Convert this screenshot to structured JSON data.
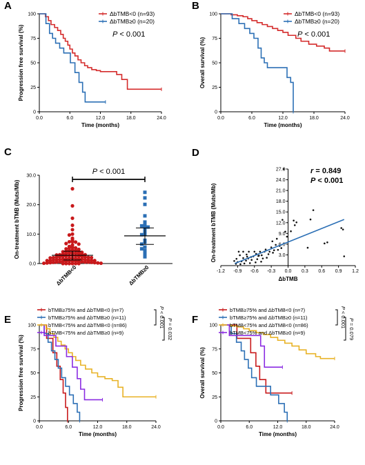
{
  "chart_data": [
    {
      "panel": "A",
      "type": "line",
      "step": true,
      "xlabel": "Time (months)",
      "ylabel": "Progression free survival (%)",
      "xlim": [
        0,
        24
      ],
      "ylim": [
        0,
        100
      ],
      "xticks": [
        "0.0",
        "6.0",
        "12.0",
        "18.0",
        "24.0"
      ],
      "yticks": [
        "0",
        "25",
        "50",
        "75",
        "100"
      ],
      "legend_position": "top-right",
      "annotation": "P < 0.001",
      "series": [
        {
          "name": "ΔbTMB<0 (n=93)",
          "color": "#d42a2a",
          "x": [
            0,
            1.2,
            1.8,
            2.3,
            3.0,
            3.6,
            4.2,
            4.7,
            5.1,
            5.6,
            6.0,
            6.5,
            7.0,
            7.6,
            8.2,
            8.9,
            9.5,
            10.3,
            11.2,
            12.0,
            13.4,
            15.2,
            16.2,
            17.3,
            24
          ],
          "y": [
            100,
            97,
            93,
            89,
            86,
            83,
            79,
            75,
            72,
            68,
            64,
            60,
            57,
            53,
            50,
            47,
            45,
            43,
            42,
            41,
            41,
            38,
            33,
            23,
            23
          ]
        },
        {
          "name": "ΔbTMB≥0 (n=20)",
          "color": "#2b6fb5",
          "x": [
            0,
            1.3,
            2.0,
            2.6,
            3.2,
            4.0,
            4.8,
            6.1,
            7.0,
            7.8,
            8.5,
            9.0,
            10.2,
            13.0
          ],
          "y": [
            100,
            90,
            80,
            75,
            70,
            65,
            60,
            50,
            40,
            30,
            20,
            10,
            10,
            10
          ]
        }
      ]
    },
    {
      "panel": "B",
      "type": "line",
      "step": true,
      "xlabel": "Time (months)",
      "ylabel": "Overall survival (%)",
      "xlim": [
        0,
        24
      ],
      "ylim": [
        0,
        100
      ],
      "xticks": [
        "0.0",
        "6.0",
        "12.0",
        "18.0",
        "24.0"
      ],
      "yticks": [
        "0",
        "25",
        "50",
        "75",
        "100"
      ],
      "legend_position": "top-right",
      "annotation": "P < 0.001",
      "series": [
        {
          "name": "ΔbTMB<0 (n=93)",
          "color": "#d42a2a",
          "x": [
            0,
            2.0,
            3.2,
            4.3,
            5.2,
            6.0,
            7.0,
            8.0,
            9.0,
            10.0,
            11.0,
            12.0,
            13.0,
            14.5,
            15.5,
            17.0,
            18.5,
            20.0,
            21.0,
            24
          ],
          "y": [
            100,
            99,
            98,
            97,
            95,
            93,
            91,
            89,
            87,
            85,
            83,
            81,
            78,
            75,
            72,
            69,
            67,
            65,
            62,
            62
          ]
        },
        {
          "name": "ΔbTMB≥0 (n=20)",
          "color": "#2b6fb5",
          "x": [
            0,
            2.2,
            3.5,
            4.6,
            5.6,
            6.4,
            7.2,
            7.8,
            8.4,
            9.0,
            12.0,
            12.8,
            13.5,
            14.0
          ],
          "y": [
            100,
            95,
            90,
            85,
            80,
            75,
            65,
            55,
            50,
            45,
            45,
            35,
            30,
            0
          ]
        }
      ]
    },
    {
      "panel": "C",
      "type": "scatter",
      "ylabel": "On-treatment bTMB (Muts/Mb)",
      "ylim": [
        0,
        30
      ],
      "yticks": [
        "0.0",
        "10.0",
        "20.0",
        "30.0"
      ],
      "categories": [
        "ΔbTMB<0",
        "ΔbTMB≥0"
      ],
      "annotation": "P < 0.001",
      "series": [
        {
          "name": "ΔbTMB<0",
          "color": "#c8191b",
          "mean": 2.8,
          "sd_low": 1.2,
          "sd_high": 4.2,
          "values": [
            25.4,
            19.6,
            15.4,
            13.0,
            11.5,
            10.0,
            9.7,
            8.6,
            8.0,
            7.4,
            7.4,
            7.3,
            6.8,
            6.6,
            6.3,
            5.8,
            5.5,
            5.3,
            5.3,
            5.0,
            4.8,
            4.6,
            4.4,
            4.4,
            4.2,
            4.0,
            4.0,
            3.8,
            3.6,
            3.6,
            3.5,
            3.4,
            3.3,
            3.2,
            3.1,
            3.0,
            3.0,
            2.9,
            2.8,
            2.7,
            2.6,
            2.6,
            2.5,
            2.4,
            2.4,
            2.3,
            2.2,
            2.2,
            2.1,
            2.0,
            2.0,
            1.9,
            1.8,
            1.8,
            1.7,
            1.6,
            1.6,
            1.5,
            1.5,
            1.4,
            1.3,
            1.3,
            1.2,
            1.2,
            1.1,
            1.0,
            1.0,
            1.0,
            0.9,
            0.9,
            0.8,
            0.8,
            0.7,
            0.7,
            0.6,
            0.6,
            0.5,
            0.5,
            0.5,
            0.4,
            0.4,
            0.3,
            0.3,
            0.2,
            0.2,
            0.1,
            0.1,
            0.0,
            0.0,
            0.0,
            0.0,
            0.0,
            0.0
          ]
        },
        {
          "name": "ΔbTMB≥0",
          "color": "#2b6fb5",
          "mean": 9.4,
          "sd_low": 6.5,
          "sd_high": 12.1,
          "values": [
            24.2,
            22.3,
            20.1,
            16.2,
            14.1,
            13.0,
            12.8,
            12.4,
            11.9,
            11.1,
            10.0,
            9.8,
            7.9,
            7.3,
            6.6,
            5.6,
            5.0,
            4.4,
            3.3,
            2.3
          ]
        }
      ]
    },
    {
      "panel": "D",
      "type": "scatter",
      "xlabel": "ΔbTMB",
      "ylabel": "On-treatment bTMB (Muts/Mb)",
      "xlim": [
        -1.2,
        1.2
      ],
      "ylim": [
        0,
        27
      ],
      "xticks": [
        "-1.2",
        "-0.9",
        "-0.6",
        "-0.3",
        "0.0",
        "0.3",
        "0.6",
        "0.9",
        "1.2"
      ],
      "yticks": [
        "3.0",
        "6.0",
        "9.0",
        "12.0",
        "15.0",
        "18.0",
        "21.0",
        "24.0",
        "27.0"
      ],
      "annotation_r": "r = 0.849",
      "annotation_p": "P < 0.001",
      "fit_line": {
        "color": "#2b6fb5",
        "x": [
          -0.95,
          1.0
        ],
        "y": [
          0.6,
          12.9
        ]
      },
      "points": {
        "x": [
          -0.93,
          -0.9,
          -0.88,
          -0.85,
          -0.83,
          -0.8,
          -0.78,
          -0.75,
          -0.73,
          -0.7,
          -0.68,
          -0.65,
          -0.62,
          -0.6,
          -0.58,
          -0.55,
          -0.52,
          -0.5,
          -0.48,
          -0.45,
          -0.42,
          -0.4,
          -0.38,
          -0.35,
          -0.3,
          -0.28,
          -0.25,
          -0.2,
          -0.18,
          -0.15,
          -0.1,
          -0.05,
          0.05,
          0.1,
          0.15,
          0.35,
          0.45,
          0.7,
          0.95,
          1.0,
          -0.92,
          -0.86,
          -0.8,
          -0.74,
          -0.66,
          -0.57,
          -0.47,
          -0.33,
          -0.22,
          -0.12,
          -0.02,
          0.12,
          0.4,
          0.65,
          0.98,
          -0.96,
          -0.71,
          -0.53,
          -0.27,
          -0.08
        ],
        "y": [
          0.5,
          1.0,
          3.9,
          0.4,
          1.2,
          3.9,
          0.6,
          1.4,
          2.5,
          3.9,
          0.7,
          1.6,
          2.6,
          3.9,
          0.9,
          1.8,
          2.8,
          3.9,
          1.1,
          2.0,
          3.9,
          4.5,
          2.2,
          3.2,
          5.1,
          6.8,
          4.3,
          7.5,
          4.4,
          5.5,
          12.8,
          9.5,
          9.6,
          12.6,
          12.1,
          5.0,
          15.5,
          6.5,
          10.5,
          2.6,
          1.9,
          2.9,
          2.1,
          3.1,
          2.4,
          3.3,
          2.9,
          3.9,
          5.8,
          4.9,
          8.1,
          11.3,
          12.9,
          6.2,
          10.1,
          1.3,
          2.0,
          2.7,
          3.6,
          27.0
        ]
      }
    },
    {
      "panel": "E",
      "type": "line",
      "step": true,
      "xlabel": "Time (months)",
      "ylabel": "Progression free survival (%)",
      "xlim": [
        0,
        24
      ],
      "ylim": [
        0,
        100
      ],
      "xticks": [
        "0.0",
        "6.0",
        "12.0",
        "18.0",
        "24.0"
      ],
      "yticks": [
        "0",
        "25",
        "50",
        "75",
        "100"
      ],
      "legend_position": "top-left",
      "bracket_p1": "P < 0.001",
      "bracket_p2": "P = 0.032",
      "series": [
        {
          "name": "bTMB≥75% and ΔbTMB<0 (n=7)",
          "color": "#c8191b",
          "x": [
            0,
            1.5,
            2.8,
            3.6,
            4.3,
            4.9,
            5.4,
            5.8
          ],
          "y": [
            100,
            86,
            71,
            57,
            43,
            29,
            14,
            0
          ]
        },
        {
          "name": "bTMB≥75% and ΔbTMB≥0 (n=11)",
          "color": "#2b6fb5",
          "x": [
            0,
            1.0,
            1.8,
            2.5,
            3.2,
            3.9,
            4.6,
            5.4,
            6.2,
            7.0,
            7.8,
            8.3
          ],
          "y": [
            100,
            91,
            82,
            73,
            64,
            55,
            45,
            36,
            27,
            18,
            9,
            0
          ]
        },
        {
          "name": "bTMB<75% and ΔbTMB<0 (n=86)",
          "color": "#e8b225",
          "x": [
            0,
            1.4,
            2.2,
            3.0,
            3.8,
            4.5,
            5.3,
            6.0,
            6.8,
            7.5,
            8.5,
            9.5,
            10.8,
            12.0,
            13.5,
            15.0,
            16.2,
            17.2,
            24
          ],
          "y": [
            100,
            96,
            91,
            87,
            83,
            79,
            75,
            71,
            67,
            63,
            58,
            54,
            50,
            46,
            44,
            42,
            35,
            25,
            25
          ]
        },
        {
          "name": "bTMB<75% and ΔbTMB≥0 (n=9)",
          "color": "#8a2be2",
          "x": [
            0,
            1.0,
            2.2,
            3.4,
            4.6,
            5.6,
            6.8,
            7.8,
            8.5,
            9.3,
            13.0
          ],
          "y": [
            100,
            89,
            89,
            78,
            78,
            67,
            56,
            44,
            33,
            22,
            22
          ]
        }
      ]
    },
    {
      "panel": "F",
      "type": "line",
      "step": true,
      "xlabel": "Time (months)",
      "ylabel": "Overall survival (%)",
      "xlim": [
        0,
        24
      ],
      "ylim": [
        0,
        100
      ],
      "xticks": [
        "0.0",
        "6.0",
        "12.0",
        "18.0",
        "24.0"
      ],
      "yticks": [
        "0",
        "25",
        "50",
        "75",
        "100"
      ],
      "legend_position": "top-left",
      "bracket_p1": "P < 0.001",
      "bracket_p2": "P = 0.079",
      "series": [
        {
          "name": "bTMB≥75% and ΔbTMB<0 (n=7)",
          "color": "#c8191b",
          "x": [
            0,
            3.4,
            5.2,
            6.3,
            7.4,
            8.2,
            9.5,
            12.6,
            15.0
          ],
          "y": [
            100,
            86,
            86,
            71,
            57,
            43,
            29,
            29,
            29
          ]
        },
        {
          "name": "bTMB≥75% and ΔbTMB≥0 (n=11)",
          "color": "#2b6fb5",
          "x": [
            0,
            2.2,
            3.3,
            4.3,
            5.0,
            5.8,
            6.5,
            7.5,
            9.5,
            10.5,
            12.2,
            13.4,
            14.0
          ],
          "y": [
            100,
            91,
            82,
            73,
            64,
            55,
            45,
            36,
            36,
            27,
            18,
            9,
            0
          ]
        },
        {
          "name": "bTMB<75% and ΔbTMB<0 (n=86)",
          "color": "#e8b225",
          "x": [
            0,
            2.2,
            3.5,
            4.8,
            6.0,
            7.5,
            9.0,
            10.5,
            12.0,
            13.5,
            15.0,
            16.5,
            18.0,
            20.0,
            21.0,
            24
          ],
          "y": [
            100,
            99,
            98,
            96,
            94,
            92,
            90,
            87,
            84,
            81,
            78,
            74,
            70,
            67,
            65,
            65
          ]
        },
        {
          "name": "bTMB<75% and ΔbTMB≥0 (n=9)",
          "color": "#8a2be2",
          "x": [
            0,
            1.8,
            2.8,
            4.0,
            6.0,
            7.0,
            8.4,
            9.2,
            13.0
          ],
          "y": [
            100,
            89,
            89,
            89,
            89,
            89,
            78,
            56,
            56
          ]
        }
      ]
    }
  ]
}
